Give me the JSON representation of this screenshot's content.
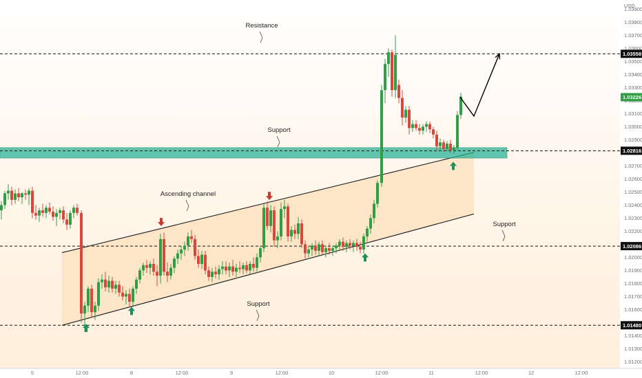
{
  "chart_data": {
    "type": "candlestick",
    "currency": "USD",
    "colors": {
      "up": "#2f9e44",
      "down": "#d9483b",
      "zone": "#2bb39a",
      "channel_fill": "#fde3c2",
      "text": "#1f1f1f"
    },
    "y_axis": {
      "range": [
        1.0115,
        1.0397
      ],
      "ticks": [
        "1.03900",
        "1.03800",
        "1.03700",
        "1.03600",
        "1.03500",
        "1.03400",
        "1.03300",
        "1.03200",
        "1.03100",
        "1.03000",
        "1.02900",
        "1.02800",
        "1.02700",
        "1.02600",
        "1.02500",
        "1.02400",
        "1.02300",
        "1.02200",
        "1.02100",
        "1.02000",
        "1.01900",
        "1.01800",
        "1.01700",
        "1.01600",
        "1.01500",
        "1.01400",
        "1.01300",
        "1.01200"
      ]
    },
    "x_axis": {
      "range": [
        0,
        932
      ],
      "labels": [
        {
          "label": "5",
          "x": 47
        },
        {
          "label": "12:00",
          "x": 119
        },
        {
          "label": "8",
          "x": 191
        },
        {
          "label": "12:00",
          "x": 264
        },
        {
          "label": "9",
          "x": 336
        },
        {
          "label": "12:00",
          "x": 409
        },
        {
          "label": "10",
          "x": 481
        },
        {
          "label": "12:00",
          "x": 554
        },
        {
          "label": "11",
          "x": 626
        },
        {
          "label": "12:00",
          "x": 699
        },
        {
          "label": "12",
          "x": 771
        },
        {
          "label": "12:00",
          "x": 844
        }
      ]
    },
    "levels": [
      {
        "name": "resistance",
        "price": 1.03558,
        "label": "1.03558"
      },
      {
        "name": "support-mid",
        "price": 1.02816,
        "label": "1.02816"
      },
      {
        "name": "support-channel",
        "price": 1.02086,
        "label": "1.02086"
      },
      {
        "name": "support-low",
        "price": 1.0148,
        "label": "1.01480"
      }
    ],
    "current_price": {
      "price": 1.03226,
      "label": "1.03226"
    },
    "support_zone": [
      1.0276,
      1.0284
    ],
    "annotations": [
      {
        "text": "Resistance",
        "x": 380,
        "price": 1.0376
      },
      {
        "text": "Support",
        "x": 405,
        "price": 1.0296
      },
      {
        "text": "Ascending channel",
        "x": 273,
        "price": 1.0247
      },
      {
        "text": "Support",
        "x": 732,
        "price": 1.0224
      },
      {
        "text": "Support",
        "x": 375,
        "price": 1.0163
      }
    ],
    "channel": {
      "upper": {
        "x1": 90,
        "y1": 1.02036,
        "x2": 688,
        "y2": 1.02804
      },
      "lower": {
        "x1": 90,
        "y1": 1.0148,
        "x2": 688,
        "y2": 1.02332
      },
      "fill_from_x": 90,
      "fill_to_x": 688
    },
    "projection": {
      "points": [
        [
          668,
          1.03226
        ],
        [
          688,
          1.03081
        ],
        [
          725,
          1.03558
        ]
      ]
    },
    "arrows": [
      {
        "dir": "down",
        "x": 234,
        "price": 1.0227
      },
      {
        "dir": "down",
        "x": 391,
        "price": 1.0247
      },
      {
        "dir": "up",
        "x": 125,
        "price": 1.0146
      },
      {
        "dir": "up",
        "x": 191,
        "price": 1.0159
      },
      {
        "dir": "up",
        "x": 530,
        "price": 1.02
      },
      {
        "dir": "up",
        "x": 658,
        "price": 1.027
      }
    ],
    "candles": [
      {
        "x": 2,
        "o": 1.0236,
        "h": 1.0243,
        "l": 1.0229,
        "c": 1.024
      },
      {
        "x": 7,
        "o": 1.024,
        "h": 1.0251,
        "l": 1.0237,
        "c": 1.0249
      },
      {
        "x": 12,
        "o": 1.0249,
        "h": 1.0256,
        "l": 1.0244,
        "c": 1.0251
      },
      {
        "x": 17,
        "o": 1.0251,
        "h": 1.0254,
        "l": 1.024,
        "c": 1.0244
      },
      {
        "x": 22,
        "o": 1.0244,
        "h": 1.0252,
        "l": 1.0241,
        "c": 1.0249
      },
      {
        "x": 27,
        "o": 1.0249,
        "h": 1.0253,
        "l": 1.0243,
        "c": 1.0246
      },
      {
        "x": 32,
        "o": 1.0246,
        "h": 1.025,
        "l": 1.0241,
        "c": 1.0249
      },
      {
        "x": 37,
        "o": 1.0249,
        "h": 1.0252,
        "l": 1.0244,
        "c": 1.0248
      },
      {
        "x": 42,
        "o": 1.0248,
        "h": 1.0253,
        "l": 1.024,
        "c": 1.0251
      },
      {
        "x": 47,
        "o": 1.0251,
        "h": 1.0254,
        "l": 1.023,
        "c": 1.0234
      },
      {
        "x": 52,
        "o": 1.0234,
        "h": 1.024,
        "l": 1.0229,
        "c": 1.0232
      },
      {
        "x": 57,
        "o": 1.0232,
        "h": 1.0238,
        "l": 1.0227,
        "c": 1.0236
      },
      {
        "x": 62,
        "o": 1.0236,
        "h": 1.0241,
        "l": 1.0231,
        "c": 1.0234
      },
      {
        "x": 67,
        "o": 1.0234,
        "h": 1.024,
        "l": 1.023,
        "c": 1.0238
      },
      {
        "x": 72,
        "o": 1.0238,
        "h": 1.0242,
        "l": 1.0233,
        "c": 1.0235
      },
      {
        "x": 77,
        "o": 1.0235,
        "h": 1.0239,
        "l": 1.0228,
        "c": 1.0231
      },
      {
        "x": 82,
        "o": 1.0231,
        "h": 1.0237,
        "l": 1.0224,
        "c": 1.0234
      },
      {
        "x": 87,
        "o": 1.0234,
        "h": 1.0238,
        "l": 1.0229,
        "c": 1.0236
      },
      {
        "x": 92,
        "o": 1.0236,
        "h": 1.0239,
        "l": 1.0226,
        "c": 1.0229
      },
      {
        "x": 97,
        "o": 1.0229,
        "h": 1.0234,
        "l": 1.0221,
        "c": 1.0225
      },
      {
        "x": 102,
        "o": 1.0225,
        "h": 1.0236,
        "l": 1.0222,
        "c": 1.0234
      },
      {
        "x": 107,
        "o": 1.0234,
        "h": 1.024,
        "l": 1.023,
        "c": 1.0238
      },
      {
        "x": 112,
        "o": 1.0238,
        "h": 1.0241,
        "l": 1.0232,
        "c": 1.0234
      },
      {
        "x": 118,
        "o": 1.0234,
        "h": 1.0236,
        "l": 1.015,
        "c": 1.0157
      },
      {
        "x": 123,
        "o": 1.0157,
        "h": 1.0166,
        "l": 1.0143,
        "c": 1.0163
      },
      {
        "x": 128,
        "o": 1.0163,
        "h": 1.0178,
        "l": 1.0158,
        "c": 1.0176
      },
      {
        "x": 133,
        "o": 1.0176,
        "h": 1.0179,
        "l": 1.0154,
        "c": 1.0158
      },
      {
        "x": 138,
        "o": 1.0158,
        "h": 1.0166,
        "l": 1.0152,
        "c": 1.0163
      },
      {
        "x": 143,
        "o": 1.0163,
        "h": 1.0184,
        "l": 1.0159,
        "c": 1.0181
      },
      {
        "x": 148,
        "o": 1.0181,
        "h": 1.0187,
        "l": 1.0176,
        "c": 1.0183
      },
      {
        "x": 153,
        "o": 1.0183,
        "h": 1.0189,
        "l": 1.0174,
        "c": 1.0177
      },
      {
        "x": 158,
        "o": 1.0177,
        "h": 1.0186,
        "l": 1.0173,
        "c": 1.0182
      },
      {
        "x": 163,
        "o": 1.0182,
        "h": 1.0185,
        "l": 1.0173,
        "c": 1.0176
      },
      {
        "x": 168,
        "o": 1.0176,
        "h": 1.0182,
        "l": 1.0172,
        "c": 1.0179
      },
      {
        "x": 173,
        "o": 1.0179,
        "h": 1.0182,
        "l": 1.017,
        "c": 1.0173
      },
      {
        "x": 178,
        "o": 1.0173,
        "h": 1.0178,
        "l": 1.0167,
        "c": 1.017
      },
      {
        "x": 183,
        "o": 1.017,
        "h": 1.0175,
        "l": 1.0164,
        "c": 1.0172
      },
      {
        "x": 188,
        "o": 1.0172,
        "h": 1.0176,
        "l": 1.0162,
        "c": 1.0166
      },
      {
        "x": 193,
        "o": 1.0166,
        "h": 1.0178,
        "l": 1.0163,
        "c": 1.0176
      },
      {
        "x": 198,
        "o": 1.0176,
        "h": 1.0185,
        "l": 1.0172,
        "c": 1.0183
      },
      {
        "x": 203,
        "o": 1.0183,
        "h": 1.0192,
        "l": 1.018,
        "c": 1.019
      },
      {
        "x": 208,
        "o": 1.019,
        "h": 1.0196,
        "l": 1.0186,
        "c": 1.0194
      },
      {
        "x": 213,
        "o": 1.0194,
        "h": 1.0198,
        "l": 1.0188,
        "c": 1.0192
      },
      {
        "x": 218,
        "o": 1.0192,
        "h": 1.0197,
        "l": 1.0187,
        "c": 1.0195
      },
      {
        "x": 223,
        "o": 1.0195,
        "h": 1.0199,
        "l": 1.0186,
        "c": 1.0189
      },
      {
        "x": 228,
        "o": 1.0189,
        "h": 1.0194,
        "l": 1.0178,
        "c": 1.0186
      },
      {
        "x": 233,
        "o": 1.0186,
        "h": 1.0218,
        "l": 1.018,
        "c": 1.0214
      },
      {
        "x": 238,
        "o": 1.0214,
        "h": 1.0219,
        "l": 1.0186,
        "c": 1.0189
      },
      {
        "x": 243,
        "o": 1.0189,
        "h": 1.0196,
        "l": 1.0181,
        "c": 1.0186
      },
      {
        "x": 248,
        "o": 1.0186,
        "h": 1.0195,
        "l": 1.0183,
        "c": 1.0192
      },
      {
        "x": 253,
        "o": 1.0192,
        "h": 1.0201,
        "l": 1.0188,
        "c": 1.0199
      },
      {
        "x": 258,
        "o": 1.0199,
        "h": 1.0206,
        "l": 1.0195,
        "c": 1.0203
      },
      {
        "x": 263,
        "o": 1.0203,
        "h": 1.0209,
        "l": 1.0198,
        "c": 1.0206
      },
      {
        "x": 268,
        "o": 1.0206,
        "h": 1.0212,
        "l": 1.0201,
        "c": 1.0209
      },
      {
        "x": 273,
        "o": 1.0209,
        "h": 1.0219,
        "l": 1.0205,
        "c": 1.0216
      },
      {
        "x": 278,
        "o": 1.0216,
        "h": 1.0221,
        "l": 1.0211,
        "c": 1.0214
      },
      {
        "x": 283,
        "o": 1.0214,
        "h": 1.0217,
        "l": 1.0198,
        "c": 1.0201
      },
      {
        "x": 288,
        "o": 1.0201,
        "h": 1.0206,
        "l": 1.0192,
        "c": 1.0195
      },
      {
        "x": 293,
        "o": 1.0195,
        "h": 1.0205,
        "l": 1.0191,
        "c": 1.0202
      },
      {
        "x": 298,
        "o": 1.0202,
        "h": 1.0205,
        "l": 1.0187,
        "c": 1.019
      },
      {
        "x": 303,
        "o": 1.019,
        "h": 1.0193,
        "l": 1.0182,
        "c": 1.0185
      },
      {
        "x": 308,
        "o": 1.0185,
        "h": 1.0192,
        "l": 1.0181,
        "c": 1.0189
      },
      {
        "x": 313,
        "o": 1.0189,
        "h": 1.0193,
        "l": 1.0184,
        "c": 1.0187
      },
      {
        "x": 318,
        "o": 1.0187,
        "h": 1.0194,
        "l": 1.0183,
        "c": 1.0191
      },
      {
        "x": 323,
        "o": 1.0191,
        "h": 1.0197,
        "l": 1.0187,
        "c": 1.0193
      },
      {
        "x": 328,
        "o": 1.0193,
        "h": 1.0197,
        "l": 1.0187,
        "c": 1.019
      },
      {
        "x": 333,
        "o": 1.019,
        "h": 1.0196,
        "l": 1.0185,
        "c": 1.0193
      },
      {
        "x": 338,
        "o": 1.0193,
        "h": 1.0198,
        "l": 1.0186,
        "c": 1.0189
      },
      {
        "x": 343,
        "o": 1.0189,
        "h": 1.0195,
        "l": 1.0185,
        "c": 1.0192
      },
      {
        "x": 348,
        "o": 1.0192,
        "h": 1.0197,
        "l": 1.0188,
        "c": 1.0191
      },
      {
        "x": 353,
        "o": 1.0191,
        "h": 1.0196,
        "l": 1.0187,
        "c": 1.0194
      },
      {
        "x": 358,
        "o": 1.0194,
        "h": 1.0197,
        "l": 1.0188,
        "c": 1.019
      },
      {
        "x": 363,
        "o": 1.019,
        "h": 1.0197,
        "l": 1.0187,
        "c": 1.0195
      },
      {
        "x": 368,
        "o": 1.0195,
        "h": 1.02,
        "l": 1.0189,
        "c": 1.0192
      },
      {
        "x": 373,
        "o": 1.0192,
        "h": 1.0203,
        "l": 1.0189,
        "c": 1.02
      },
      {
        "x": 378,
        "o": 1.02,
        "h": 1.0209,
        "l": 1.0196,
        "c": 1.0207
      },
      {
        "x": 383,
        "o": 1.0207,
        "h": 1.0241,
        "l": 1.0204,
        "c": 1.0238
      },
      {
        "x": 388,
        "o": 1.0238,
        "h": 1.0243,
        "l": 1.0221,
        "c": 1.0224
      },
      {
        "x": 393,
        "o": 1.0224,
        "h": 1.024,
        "l": 1.0219,
        "c": 1.0236
      },
      {
        "x": 398,
        "o": 1.0236,
        "h": 1.0239,
        "l": 1.0208,
        "c": 1.0213
      },
      {
        "x": 403,
        "o": 1.0213,
        "h": 1.022,
        "l": 1.0207,
        "c": 1.0216
      },
      {
        "x": 408,
        "o": 1.0216,
        "h": 1.0242,
        "l": 1.0213,
        "c": 1.0237
      },
      {
        "x": 413,
        "o": 1.0237,
        "h": 1.0244,
        "l": 1.023,
        "c": 1.0239
      },
      {
        "x": 418,
        "o": 1.0239,
        "h": 1.0241,
        "l": 1.0212,
        "c": 1.0216
      },
      {
        "x": 423,
        "o": 1.0216,
        "h": 1.0224,
        "l": 1.0212,
        "c": 1.0221
      },
      {
        "x": 428,
        "o": 1.0221,
        "h": 1.0225,
        "l": 1.0214,
        "c": 1.0218
      },
      {
        "x": 433,
        "o": 1.0218,
        "h": 1.0231,
        "l": 1.0214,
        "c": 1.0226
      },
      {
        "x": 438,
        "o": 1.0226,
        "h": 1.0229,
        "l": 1.0207,
        "c": 1.021
      },
      {
        "x": 443,
        "o": 1.021,
        "h": 1.0213,
        "l": 1.0199,
        "c": 1.0203
      },
      {
        "x": 448,
        "o": 1.0203,
        "h": 1.0209,
        "l": 1.02,
        "c": 1.0206
      },
      {
        "x": 453,
        "o": 1.0206,
        "h": 1.0211,
        "l": 1.0201,
        "c": 1.0209
      },
      {
        "x": 458,
        "o": 1.0209,
        "h": 1.0213,
        "l": 1.0202,
        "c": 1.0205
      },
      {
        "x": 463,
        "o": 1.0205,
        "h": 1.0212,
        "l": 1.0201,
        "c": 1.021
      },
      {
        "x": 468,
        "o": 1.021,
        "h": 1.0213,
        "l": 1.0202,
        "c": 1.0204
      },
      {
        "x": 473,
        "o": 1.0204,
        "h": 1.0209,
        "l": 1.02,
        "c": 1.0207
      },
      {
        "x": 478,
        "o": 1.0207,
        "h": 1.0211,
        "l": 1.0202,
        "c": 1.0205
      },
      {
        "x": 483,
        "o": 1.0205,
        "h": 1.0209,
        "l": 1.0201,
        "c": 1.0207
      },
      {
        "x": 488,
        "o": 1.0207,
        "h": 1.0211,
        "l": 1.0203,
        "c": 1.0209
      },
      {
        "x": 493,
        "o": 1.0209,
        "h": 1.0214,
        "l": 1.0205,
        "c": 1.0212
      },
      {
        "x": 498,
        "o": 1.0212,
        "h": 1.0215,
        "l": 1.0205,
        "c": 1.0208
      },
      {
        "x": 503,
        "o": 1.0208,
        "h": 1.0213,
        "l": 1.0204,
        "c": 1.0211
      },
      {
        "x": 508,
        "o": 1.0211,
        "h": 1.0214,
        "l": 1.0206,
        "c": 1.0209
      },
      {
        "x": 513,
        "o": 1.0209,
        "h": 1.0213,
        "l": 1.0204,
        "c": 1.0211
      },
      {
        "x": 518,
        "o": 1.0211,
        "h": 1.0214,
        "l": 1.0205,
        "c": 1.0208
      },
      {
        "x": 523,
        "o": 1.0208,
        "h": 1.0212,
        "l": 1.0203,
        "c": 1.0206
      },
      {
        "x": 528,
        "o": 1.0206,
        "h": 1.0218,
        "l": 1.0203,
        "c": 1.0216
      },
      {
        "x": 533,
        "o": 1.0216,
        "h": 1.0224,
        "l": 1.0212,
        "c": 1.0222
      },
      {
        "x": 538,
        "o": 1.0222,
        "h": 1.0233,
        "l": 1.0218,
        "c": 1.023
      },
      {
        "x": 543,
        "o": 1.023,
        "h": 1.0244,
        "l": 1.0226,
        "c": 1.0241
      },
      {
        "x": 548,
        "o": 1.0241,
        "h": 1.0259,
        "l": 1.0238,
        "c": 1.0257
      },
      {
        "x": 554,
        "o": 1.0257,
        "h": 1.0332,
        "l": 1.0254,
        "c": 1.0328
      },
      {
        "x": 559,
        "o": 1.0328,
        "h": 1.0352,
        "l": 1.0318,
        "c": 1.0348
      },
      {
        "x": 564,
        "o": 1.0348,
        "h": 1.036,
        "l": 1.0338,
        "c": 1.0357
      },
      {
        "x": 569,
        "o": 1.0357,
        "h": 1.0359,
        "l": 1.0323,
        "c": 1.0328
      },
      {
        "x": 574,
        "o": 1.0328,
        "h": 1.037,
        "l": 1.0322,
        "c": 1.0355
      },
      {
        "x": 579,
        "o": 1.0332,
        "h": 1.0336,
        "l": 1.0318,
        "c": 1.0322
      },
      {
        "x": 584,
        "o": 1.0322,
        "h": 1.0328,
        "l": 1.0301,
        "c": 1.0307
      },
      {
        "x": 589,
        "o": 1.0307,
        "h": 1.0316,
        "l": 1.0303,
        "c": 1.0313
      },
      {
        "x": 594,
        "o": 1.0313,
        "h": 1.0316,
        "l": 1.0294,
        "c": 1.0299
      },
      {
        "x": 599,
        "o": 1.0299,
        "h": 1.0305,
        "l": 1.0296,
        "c": 1.0302
      },
      {
        "x": 604,
        "o": 1.0302,
        "h": 1.0305,
        "l": 1.0297,
        "c": 1.0299
      },
      {
        "x": 609,
        "o": 1.0299,
        "h": 1.0302,
        "l": 1.0294,
        "c": 1.0297
      },
      {
        "x": 614,
        "o": 1.0297,
        "h": 1.0302,
        "l": 1.0294,
        "c": 1.03
      },
      {
        "x": 619,
        "o": 1.03,
        "h": 1.0304,
        "l": 1.0296,
        "c": 1.0302
      },
      {
        "x": 624,
        "o": 1.0302,
        "h": 1.0304,
        "l": 1.0295,
        "c": 1.0298
      },
      {
        "x": 629,
        "o": 1.0298,
        "h": 1.03,
        "l": 1.0291,
        "c": 1.0294
      },
      {
        "x": 634,
        "o": 1.0294,
        "h": 1.0297,
        "l": 1.0282,
        "c": 1.0285
      },
      {
        "x": 639,
        "o": 1.0285,
        "h": 1.0291,
        "l": 1.0281,
        "c": 1.0288
      },
      {
        "x": 644,
        "o": 1.0288,
        "h": 1.029,
        "l": 1.0281,
        "c": 1.0283
      },
      {
        "x": 649,
        "o": 1.0283,
        "h": 1.0289,
        "l": 1.0281,
        "c": 1.0287
      },
      {
        "x": 654,
        "o": 1.0287,
        "h": 1.029,
        "l": 1.028,
        "c": 1.0282
      },
      {
        "x": 659,
        "o": 1.0282,
        "h": 1.0286,
        "l": 1.0279,
        "c": 1.0284
      },
      {
        "x": 664,
        "o": 1.0284,
        "h": 1.0312,
        "l": 1.0282,
        "c": 1.0309
      },
      {
        "x": 669,
        "o": 1.0309,
        "h": 1.0326,
        "l": 1.0306,
        "c": 1.0323
      }
    ]
  }
}
